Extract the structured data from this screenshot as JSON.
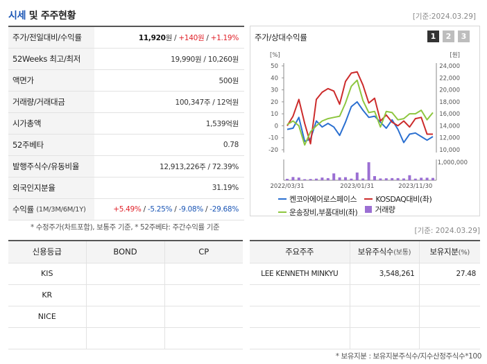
{
  "header": {
    "title_part1": "시세",
    "title_part2": " 및 주주현황",
    "basis": "[기준:2024.03.29]"
  },
  "quote": {
    "rows": [
      {
        "label": "주가/전일대비/수익률",
        "price": "11,920",
        "unit": "원",
        "sep1": " / ",
        "change": "+140원",
        "sep2": " / ",
        "rate": "+1.19%"
      },
      {
        "label": "52Weeks 최고/최저",
        "value": "19,990원 / 10,260원"
      },
      {
        "label": "액면가",
        "value": "500원"
      },
      {
        "label": "거래량/거래대금",
        "value": "100,347주 / 12억원"
      },
      {
        "label": "시가총액",
        "value": "1,539억원"
      },
      {
        "label": "52주베타",
        "value": "0.78"
      },
      {
        "label": "발행주식수/유동비율",
        "value": "12,913,226주 / 72.39%"
      },
      {
        "label": "외국인지분율",
        "value": "31.19%"
      },
      {
        "label": "수익률",
        "label_sub": "(1M/3M/6M/1Y)",
        "r1": "+5.49%",
        "r2": "-5.25%",
        "r3": "-9.08%",
        "r4": "-29.68%",
        "sep": "/ "
      }
    ],
    "note": "* 수정주가(차트포함), 보통주 기준, * 52주베타: 주간수익률 기준"
  },
  "chart_panel": {
    "title": "주가/상대수익률",
    "tabs": [
      "1",
      "2",
      "3"
    ],
    "active_tab": "1",
    "left_unit": "[%]",
    "right_unit": "[원]",
    "legend": [
      {
        "label": "켄코아에어로스페이스",
        "color": "#2a6fd0",
        "kind": "line"
      },
      {
        "label": "KOSDAQ대비(좌)",
        "color": "#cc2b2b",
        "kind": "line"
      },
      {
        "label": "운송장비,부품대비(좌)",
        "color": "#8dc63f",
        "kind": "line"
      },
      {
        "label": "거래량",
        "color": "#9b6fd3",
        "kind": "box"
      }
    ]
  },
  "chart_data": {
    "type": "line",
    "x_ticks": [
      "2022/03/31",
      "2023/01/31",
      "2023/11/30"
    ],
    "y_left_ticks": [
      "50",
      "40",
      "30",
      "20",
      "10",
      "0",
      "-10",
      "-20"
    ],
    "y_left_range": [
      -20,
      50
    ],
    "y_right_ticks": [
      "24,000",
      "22,000",
      "20,000",
      "18,000",
      "16,000",
      "14,000",
      "12,000",
      "10,000"
    ],
    "y_right_range": [
      10000,
      24000
    ],
    "volume_tick": "1,000,000",
    "volume_max": 1000000,
    "series": [
      {
        "name": "켄코아에어로스페이스",
        "color": "#2a6fd0",
        "values": [
          -3,
          -2,
          7,
          -13,
          -11,
          4,
          -1,
          2,
          -1,
          -8,
          3,
          16,
          20,
          13,
          7,
          8,
          3,
          -2,
          5,
          -3,
          -14,
          -7,
          -6,
          -9,
          -12,
          -9
        ]
      },
      {
        "name": "KOSDAQ대비(좌)",
        "color": "#cc2b2b",
        "values": [
          0,
          8,
          22,
          2,
          -15,
          22,
          28,
          31,
          29,
          18,
          37,
          44,
          45,
          34,
          19,
          23,
          4,
          9,
          3,
          0,
          4,
          -1,
          6,
          7,
          -7,
          -7
        ]
      },
      {
        "name": "운송장비,부품대비(좌)",
        "color": "#8dc63f",
        "values": [
          1,
          4,
          0,
          -16,
          -5,
          0,
          4,
          6,
          7,
          8,
          19,
          33,
          38,
          21,
          11,
          12,
          -1,
          12,
          11,
          5,
          6,
          10,
          10,
          13,
          5,
          11
        ]
      },
      {
        "name": "거래량",
        "color": "#9b6fd3",
        "values": [
          80000,
          180000,
          150000,
          60000,
          70000,
          90000,
          150000,
          120000,
          380000,
          160000,
          170000,
          90000,
          430000,
          100000,
          1000000,
          230000,
          100000,
          110000,
          120000,
          120000,
          100000,
          280000,
          90000,
          140000,
          140000,
          130000
        ]
      }
    ]
  },
  "basis2": "[기준: 2024.03.29]",
  "credit": {
    "headers": [
      "신용등급",
      "BOND",
      "CP"
    ],
    "rows": [
      [
        "KIS",
        "",
        ""
      ],
      [
        "KR",
        "",
        ""
      ],
      [
        "NICE",
        "",
        ""
      ],
      [
        "",
        "",
        ""
      ]
    ]
  },
  "holders": {
    "headers": [
      "주요주주",
      "보유주식수",
      "(보통)",
      "보유지분",
      "(%)"
    ],
    "rows": [
      [
        "LEE KENNETH MINKYU",
        "3,548,261",
        "27.48"
      ],
      [
        "",
        "",
        ""
      ],
      [
        "",
        "",
        ""
      ],
      [
        "",
        "",
        ""
      ]
    ],
    "note": "* 보유지분 : 보유지분주식수/지수산정주식수*100"
  }
}
